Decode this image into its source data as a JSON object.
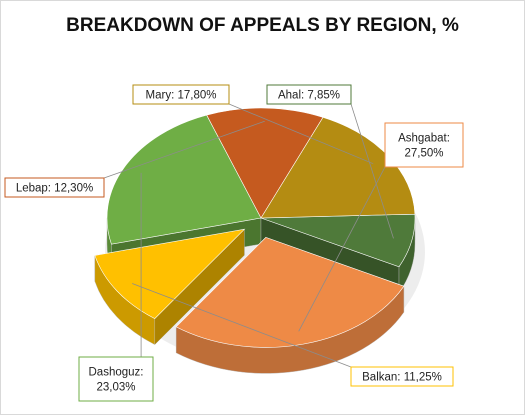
{
  "chart_data": {
    "type": "pie",
    "title": "BREAKDOWN OF APPEALS BY REGION, %",
    "categories": [
      "Ahal",
      "Ashgabat",
      "Balkan",
      "Dashoguz",
      "Lebap",
      "Mary"
    ],
    "values": [
      7.85,
      27.5,
      11.25,
      23.03,
      12.3,
      17.8
    ],
    "data_labels": [
      [
        "Ahal: 7,85%"
      ],
      [
        "Ashgabat:",
        "27,50%"
      ],
      [
        "Balkan: 11,25%"
      ],
      [
        "Dashoguz:",
        "23,03%"
      ],
      [
        "Lebap: 12,30%"
      ],
      [
        "Mary: 17,80%"
      ]
    ],
    "colors": [
      "#4f7a3a",
      "#ee8a46",
      "#ffc000",
      "#6fae45",
      "#c55a1f",
      "#b48c12"
    ],
    "exploded": [
      "Ashgabat",
      "Balkan"
    ],
    "style": "3d-pie",
    "legend": "none"
  }
}
